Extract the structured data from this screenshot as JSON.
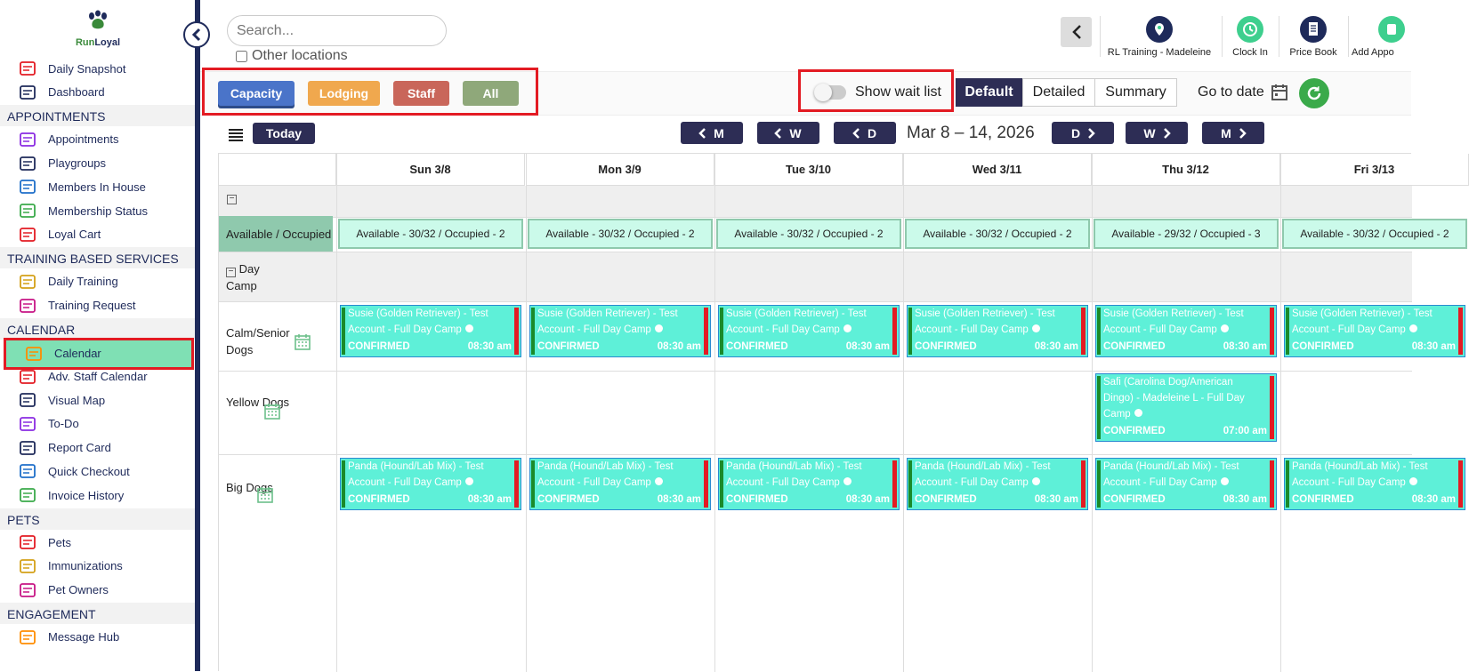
{
  "app": {
    "logo_text_1": "Run",
    "logo_text_2": "Loyal"
  },
  "sidebar": {
    "items_top": [
      {
        "label": "Daily Snapshot",
        "icon": "today-icon"
      },
      {
        "label": "Dashboard",
        "icon": "dashboard-icon"
      }
    ],
    "sections": [
      {
        "title": "APPOINTMENTS",
        "items": [
          {
            "label": "Appointments",
            "icon": "calendar-grid-icon"
          },
          {
            "label": "Playgroups",
            "icon": "playgroup-icon"
          },
          {
            "label": "Members In House",
            "icon": "house-icon"
          },
          {
            "label": "Membership Status",
            "icon": "membership-icon"
          },
          {
            "label": "Loyal Cart",
            "icon": "cart-icon"
          }
        ]
      },
      {
        "title": "TRAINING BASED SERVICES",
        "items": [
          {
            "label": "Daily Training",
            "icon": "training-icon"
          },
          {
            "label": "Training Request",
            "icon": "training-request-icon"
          }
        ]
      },
      {
        "title": "CALENDAR",
        "items": [
          {
            "label": "Calendar",
            "icon": "calendar-icon",
            "active": true
          },
          {
            "label": "Adv. Staff Calendar",
            "icon": "staff-calendar-icon"
          },
          {
            "label": "Visual Map",
            "icon": "map-icon"
          },
          {
            "label": "To-Do",
            "icon": "todo-icon"
          },
          {
            "label": "Report Card",
            "icon": "report-card-icon"
          },
          {
            "label": "Quick Checkout",
            "icon": "checkout-cart-icon"
          },
          {
            "label": "Invoice History",
            "icon": "invoice-history-icon"
          }
        ]
      },
      {
        "title": "PETS",
        "items": [
          {
            "label": "Pets",
            "icon": "paw-icon"
          },
          {
            "label": "Immunizations",
            "icon": "immunization-icon"
          },
          {
            "label": "Pet Owners",
            "icon": "owner-icon"
          }
        ]
      },
      {
        "title": "ENGAGEMENT",
        "items": [
          {
            "label": "Message Hub",
            "icon": "message-icon"
          }
        ]
      }
    ]
  },
  "header": {
    "search_placeholder": "Search...",
    "other_locations": "Other locations",
    "actions": [
      {
        "label": "RL Training - Madeleine",
        "icon": "location-icon",
        "color": "#1e2a5a"
      },
      {
        "label": "Clock In",
        "icon": "clock-icon",
        "color": "#3ecf8e"
      },
      {
        "label": "Price Book",
        "icon": "document-icon",
        "color": "#1e2a5a"
      },
      {
        "label": "Add Appo",
        "icon": "add-appointment-icon",
        "color": "#3ecf8e"
      }
    ]
  },
  "filters": {
    "capacity": "Capacity",
    "lodging": "Lodging",
    "staff": "Staff",
    "all": "All",
    "colors": {
      "capacity": "#4a74c9",
      "lodging": "#f0a84e",
      "staff": "#c9665a",
      "all": "#8fa87a"
    }
  },
  "toolbar": {
    "wait_list_label": "Show wait list",
    "views": [
      "Default",
      "Detailed",
      "Summary"
    ],
    "go_to_date": "Go to date"
  },
  "calendar": {
    "today": "Today",
    "nav_prev": [
      "M",
      "W",
      "D"
    ],
    "nav_next": [
      "D",
      "W",
      "M"
    ],
    "range": "Mar 8 – 14, 2026",
    "days": [
      "Sun 3/8",
      "Mon 3/9",
      "Tue 3/10",
      "Wed 3/11",
      "Thu 3/12",
      "Fri 3/13"
    ],
    "available_label": "Available / Occupied",
    "availability": [
      "Available - 30/32 / Occupied - 2",
      "Available - 30/32 / Occupied - 2",
      "Available - 30/32 / Occupied - 2",
      "Available - 30/32 / Occupied - 2",
      "Available - 29/32 / Occupied - 3",
      "Available - 30/32 / Occupied - 2"
    ],
    "group": "Day Camp",
    "rows": [
      "Calm/Senior Dogs",
      "Yellow Dogs",
      "Big Dogs"
    ],
    "events": {
      "susie": {
        "line1": "Susie (Golden Retriever) - Test",
        "line2": "Account - Full Day Camp",
        "status": "CONFIRMED",
        "time": "08:30 am"
      },
      "safi": {
        "line1": "Safi (Carolina Dog/American",
        "line2": "Dingo) - Madeleine L - Full Day",
        "line3": "Camp",
        "status": "CONFIRMED",
        "time": "07:00 am"
      },
      "panda": {
        "line1": "Panda (Hound/Lab Mix) - Test",
        "line2": "Account - Full Day Camp",
        "status": "CONFIRMED",
        "time": "08:30 am"
      }
    }
  }
}
